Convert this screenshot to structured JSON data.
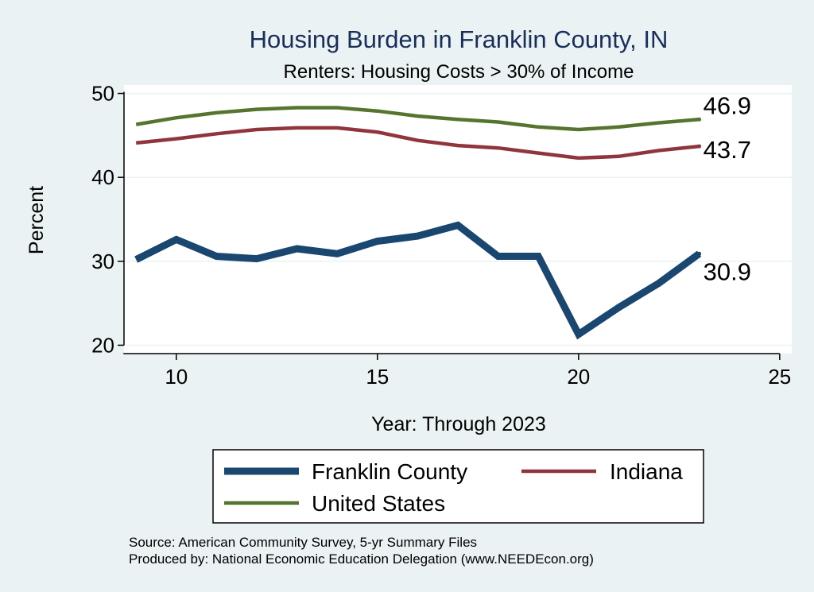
{
  "chart_data": {
    "type": "line",
    "title": "Housing Burden in Franklin County, IN",
    "subtitle": "Renters: Housing Costs > 30% of Income",
    "xlabel": "Year: Through 2023",
    "ylabel": "Percent",
    "xlim": [
      8.7,
      25.3
    ],
    "ylim": [
      19,
      51
    ],
    "x_ticks": [
      10,
      15,
      20,
      25
    ],
    "y_ticks": [
      20,
      30,
      40,
      50
    ],
    "x": [
      9,
      10,
      11,
      12,
      13,
      14,
      15,
      16,
      17,
      18,
      19,
      20,
      21,
      22,
      23
    ],
    "series": [
      {
        "name": "Franklin County",
        "color": "#1a476f",
        "values": [
          30.2,
          32.6,
          30.6,
          30.3,
          31.5,
          30.9,
          32.4,
          33.0,
          34.3,
          30.6,
          30.6,
          21.3,
          24.5,
          27.4,
          30.9
        ],
        "end_label": "30.9"
      },
      {
        "name": "Indiana",
        "color": "#90353b",
        "values": [
          44.1,
          44.6,
          45.2,
          45.7,
          45.9,
          45.9,
          45.4,
          44.4,
          43.8,
          43.5,
          42.9,
          42.3,
          42.5,
          43.2,
          43.7
        ],
        "end_label": "43.7"
      },
      {
        "name": "United States",
        "color": "#55752f",
        "values": [
          46.3,
          47.1,
          47.7,
          48.1,
          48.3,
          48.3,
          47.9,
          47.3,
          46.9,
          46.6,
          46.0,
          45.7,
          46.0,
          46.5,
          46.9
        ],
        "end_label": "46.9"
      }
    ],
    "legend": {
      "position": "bottom",
      "items": [
        "Franklin County",
        "Indiana",
        "United States"
      ]
    }
  },
  "footer": {
    "source": "Source: American Community Survey, 5-yr Summary Files",
    "produced_by": "Produced by: National Economic Education Delegation (www.NEEDEcon.org)"
  }
}
